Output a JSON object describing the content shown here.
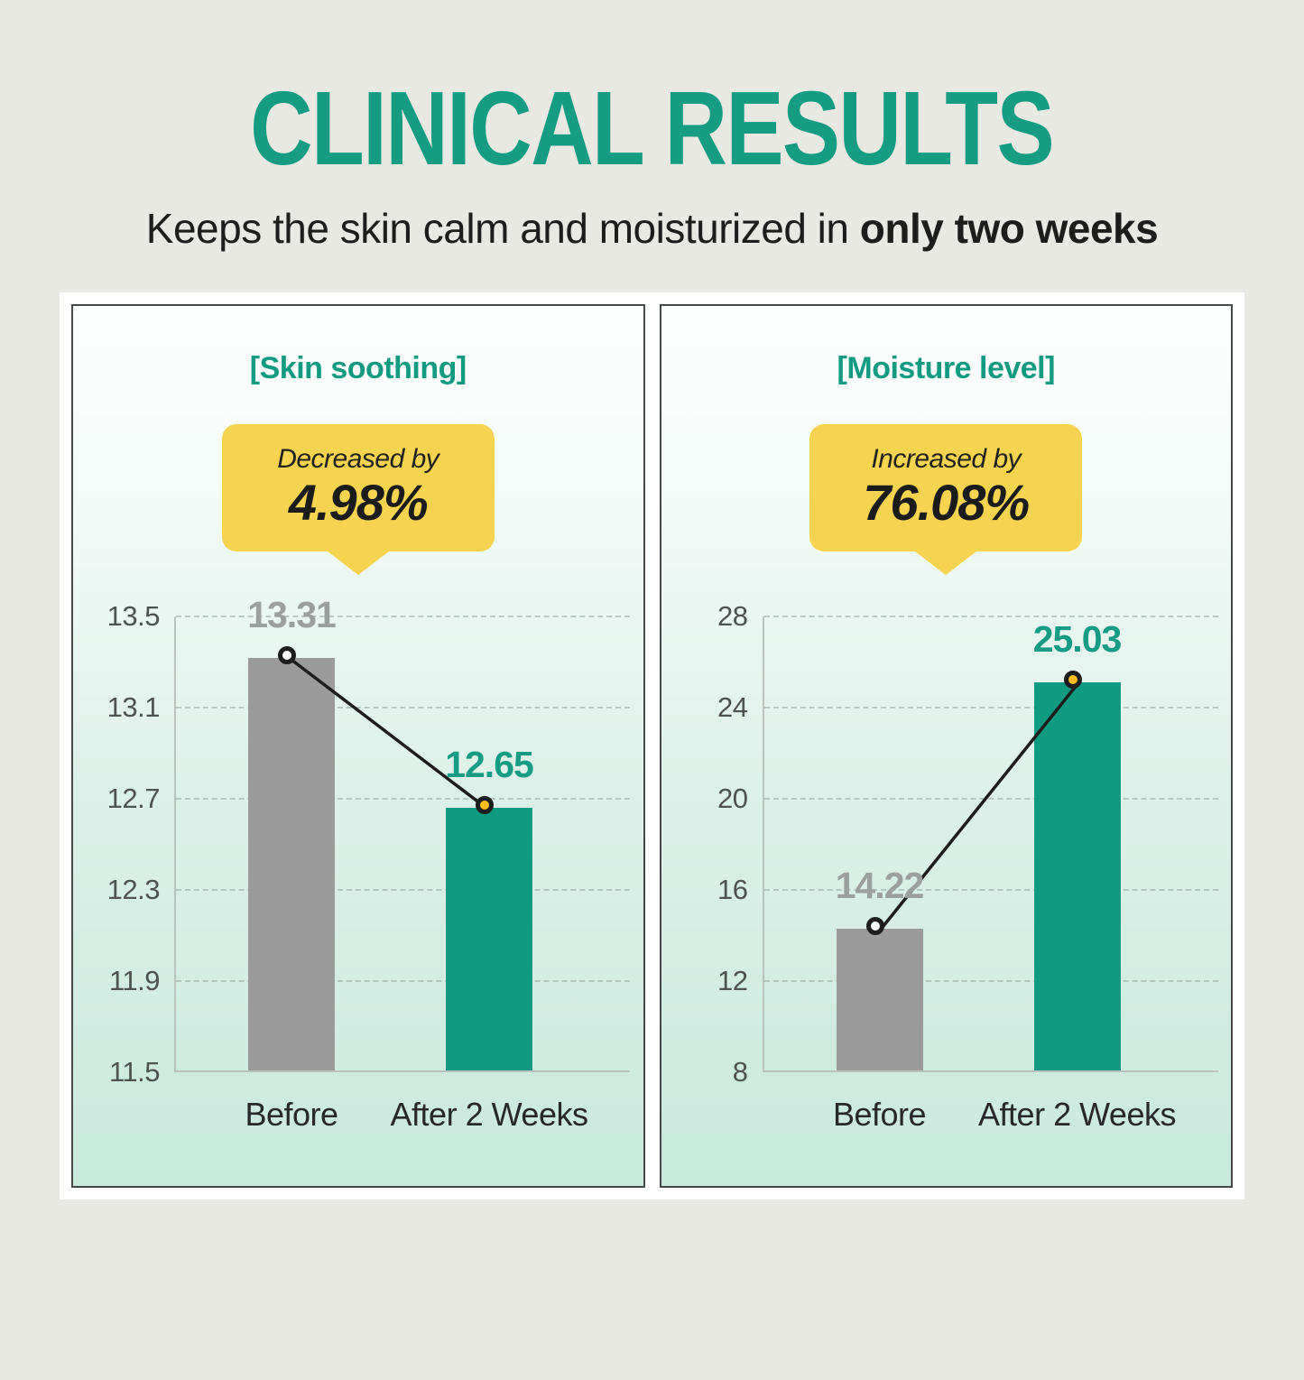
{
  "header": {
    "title": "CLINICAL RESULTS",
    "subtitle_normal": "Keeps the skin calm and moisturized in ",
    "subtitle_bold": "only two weeks"
  },
  "colors": {
    "accent_teal": "#159c83",
    "callout_yellow": "#f6d44f",
    "marker_yellow": "#fcbf17",
    "bar_gray": "#9b9b9b",
    "bar_green": "#0f9b81",
    "page_background": "#e9e9e3",
    "panel_mint": "#c9e9dd"
  },
  "chart_data": [
    {
      "type": "bar",
      "panel_title": "[Skin soothing]",
      "callout": {
        "label": "Decreased by",
        "value": "4.98%"
      },
      "categories": [
        "Before",
        "After 2 Weeks"
      ],
      "values": [
        13.31,
        12.65
      ],
      "value_labels": [
        "13.31",
        "12.65"
      ],
      "ylim": [
        11.5,
        13.5
      ],
      "yticks": [
        "13.5",
        "13.1",
        "12.7",
        "12.3",
        "11.9",
        "11.5"
      ],
      "grid": "dashed horizontal",
      "legend": "none",
      "bar_colors": [
        "#9b9b9b",
        "#0f9b81"
      ],
      "value_label_colors": [
        "#9aa09d",
        "#169c84"
      ],
      "marker_fills": [
        "#ffffff",
        "#fcbf17"
      ],
      "connector_color": "#1d1d1d"
    },
    {
      "type": "bar",
      "panel_title": "[Moisture level]",
      "callout": {
        "label": "Increased by",
        "value": "76.08%"
      },
      "categories": [
        "Before",
        "After 2 Weeks"
      ],
      "values": [
        14.22,
        25.03
      ],
      "value_labels": [
        "14.22",
        "25.03"
      ],
      "ylim": [
        8,
        28
      ],
      "yticks": [
        "28",
        "24",
        "20",
        "16",
        "12",
        "8"
      ],
      "grid": "dashed horizontal",
      "legend": "none",
      "bar_colors": [
        "#9b9b9b",
        "#0f9b81"
      ],
      "value_label_colors": [
        "#9aa09d",
        "#169c84"
      ],
      "marker_fills": [
        "#ffffff",
        "#fcbf17"
      ],
      "connector_color": "#1d1d1d"
    }
  ]
}
